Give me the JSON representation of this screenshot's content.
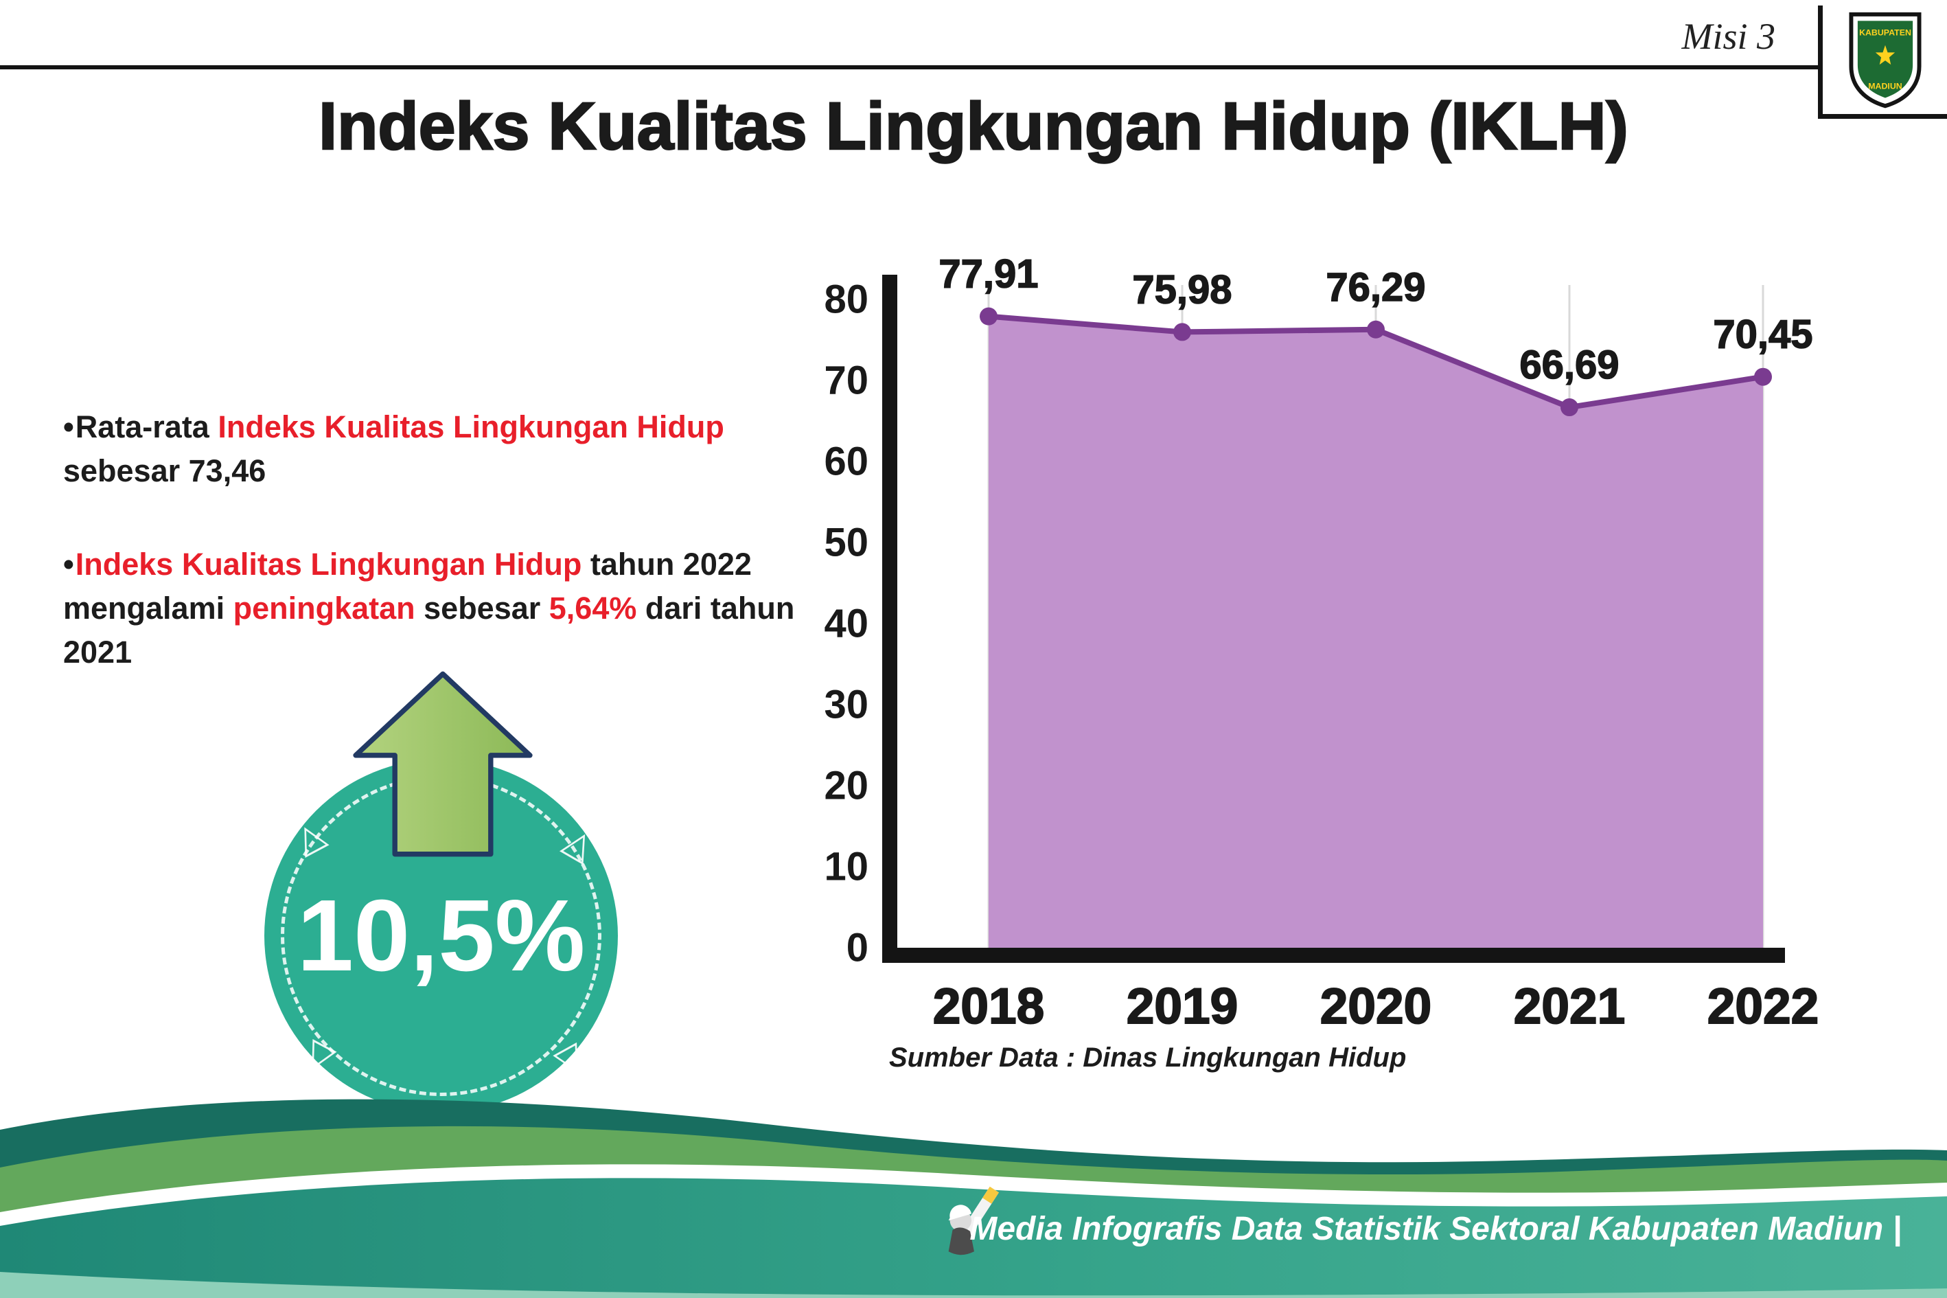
{
  "header": {
    "misi_label": "Misi 3",
    "title": "Indeks Kualitas Lingkungan Hidup (IKLH)",
    "logo": {
      "top_text": "KABUPATEN",
      "bottom_text": "MADIUN"
    }
  },
  "bullet_marker": "•",
  "bullets": [
    {
      "segments": [
        {
          "t": "Rata-rata ",
          "c": "dark"
        },
        {
          "t": "Indeks Kualitas Lingkungan Hidup",
          "c": "red"
        },
        {
          "t": " sebesar 73,46",
          "c": "dark"
        }
      ]
    },
    {
      "segments": [
        {
          "t": "Indeks Kualitas Lingkungan Hidup",
          "c": "red"
        },
        {
          "t": " tahun 2022 mengalami ",
          "c": "dark"
        },
        {
          "t": "peningkatan",
          "c": "red"
        },
        {
          "t": " sebesar ",
          "c": "dark"
        },
        {
          "t": "5,64%",
          "c": "red"
        },
        {
          "t": " dari tahun 2021",
          "c": "dark"
        }
      ]
    }
  ],
  "badge": {
    "value": "10,5%",
    "triangle_glyph": "△"
  },
  "chart_data": {
    "type": "area",
    "title": "Indeks Kualitas Lingkungan Hidup (IKLH)",
    "categories": [
      "2018",
      "2019",
      "2020",
      "2021",
      "2022"
    ],
    "values": [
      77.91,
      75.98,
      76.29,
      66.69,
      70.45
    ],
    "value_labels": [
      "77,91",
      "75,98",
      "76,29",
      "66,69",
      "70,45"
    ],
    "ylim": [
      0,
      80
    ],
    "yticks": [
      0,
      10,
      20,
      30,
      40,
      50,
      60,
      70,
      80
    ],
    "grid": "vertical",
    "legend": "none",
    "fill_color": "#c192cd",
    "line_color": "#7a3b90",
    "axis_color": "#141414",
    "grid_color": "#d9d9d9",
    "source_note": "Sumber Data : Dinas Lingkungan Hidup"
  },
  "footer": {
    "caption": "Media Infografis Data Statistik Sektoral Kabupaten Madiun |"
  },
  "colors": {
    "red_accent": "#e81f2a",
    "badge_teal": "#2cae92",
    "arrow_green": "#9dc466",
    "footer_dark_teal": "#186e60",
    "footer_green": "#63a85c",
    "footer_band_start": "#1f8876",
    "footer_band_end": "#49b298"
  }
}
